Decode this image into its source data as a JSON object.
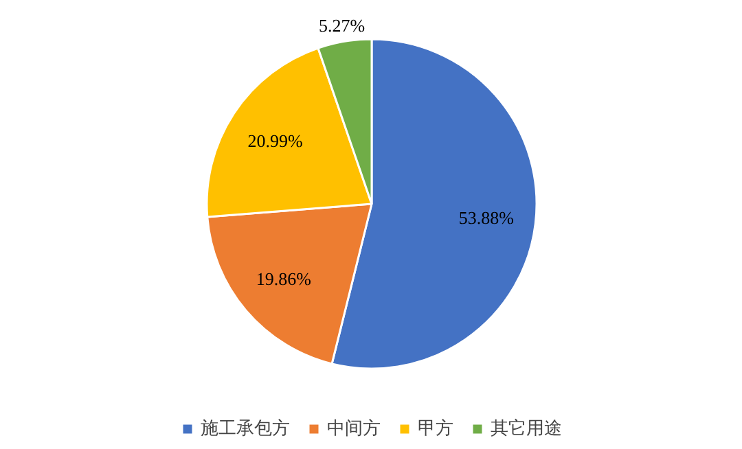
{
  "chart_data": {
    "type": "pie",
    "categories": [
      "施工承包方",
      "中间方",
      "甲方",
      "其它用途"
    ],
    "values": [
      53.88,
      19.86,
      20.99,
      5.27
    ],
    "colors": [
      "#4472c4",
      "#ed7d31",
      "#ffc000",
      "#70ad47"
    ],
    "value_labels": [
      "53.88%",
      "19.86%",
      "20.99%",
      "5.27%"
    ],
    "legend": "bottom"
  }
}
